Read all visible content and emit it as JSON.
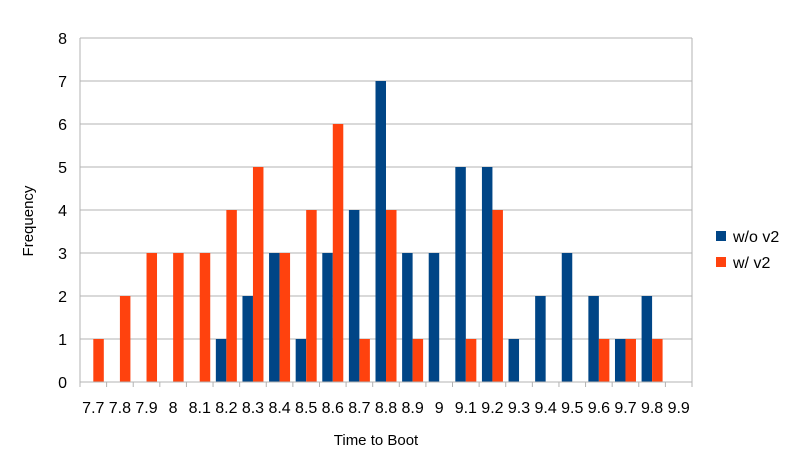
{
  "chart_data": {
    "type": "bar",
    "xlabel": "Time to Boot",
    "ylabel": "Frequency",
    "ylim": [
      0,
      8
    ],
    "yticks": [
      0,
      1,
      2,
      3,
      4,
      5,
      6,
      7,
      8
    ],
    "grid": true,
    "legend_position": "right",
    "categories": [
      "7.7",
      "7.8",
      "7.9",
      "8",
      "8.1",
      "8.2",
      "8.3",
      "8.4",
      "8.5",
      "8.6",
      "8.7",
      "8.8",
      "8.9",
      "9",
      "9.1",
      "9.2",
      "9.3",
      "9.4",
      "9.5",
      "9.6",
      "9.7",
      "9.8",
      "9.9"
    ],
    "tick_labels": [
      "7.7",
      "7.8",
      "7.9",
      "8",
      "8.1",
      "8.2",
      "8.3",
      "8.4",
      "8.5",
      "8.6",
      "8.7",
      "8.8",
      "8.9",
      "9",
      "9.1",
      "9.2",
      "9.3",
      "9.4",
      "9.5",
      "9.6",
      "9.7",
      "9.8",
      "9.9"
    ],
    "series": [
      {
        "name": "w/o v2",
        "color": "#004586",
        "values": [
          0,
          0,
          0,
          0,
          0,
          1,
          2,
          3,
          1,
          3,
          4,
          7,
          3,
          3,
          5,
          5,
          1,
          2,
          3,
          2,
          1,
          2,
          0
        ]
      },
      {
        "name": "w/ v2",
        "color": "#ff420e",
        "values": [
          1,
          2,
          3,
          3,
          3,
          4,
          5,
          3,
          4,
          6,
          1,
          4,
          1,
          0,
          1,
          4,
          0,
          0,
          0,
          1,
          1,
          1,
          0
        ]
      }
    ]
  }
}
